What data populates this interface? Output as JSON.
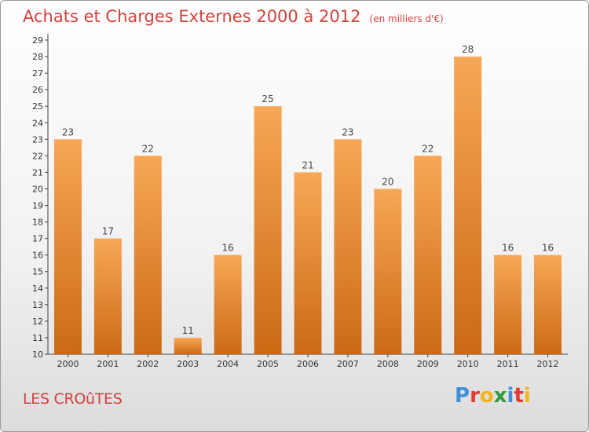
{
  "header": {
    "title": "Achats et Charges Externes 2000 à 2012",
    "subtitle": "(en milliers d'€)"
  },
  "footer": {
    "commune": "LES CROûTES",
    "logo_text": "Proxiti"
  },
  "colors": {
    "title": "#d0423d",
    "bar_light": "#f7a755",
    "bar_dark": "#cc6a14"
  },
  "chart_data": {
    "type": "bar",
    "categories": [
      "2000",
      "2001",
      "2002",
      "2003",
      "2004",
      "2005",
      "2006",
      "2007",
      "2008",
      "2009",
      "2010",
      "2011",
      "2012"
    ],
    "values": [
      23,
      17,
      22,
      11,
      16,
      25,
      21,
      23,
      20,
      22,
      28,
      16,
      16
    ],
    "ylim": [
      10,
      29
    ],
    "yticks": [
      10,
      11,
      12,
      13,
      14,
      15,
      16,
      17,
      18,
      19,
      20,
      21,
      22,
      23,
      24,
      25,
      26,
      27,
      28,
      29
    ],
    "grid": false,
    "data_labels": true
  }
}
